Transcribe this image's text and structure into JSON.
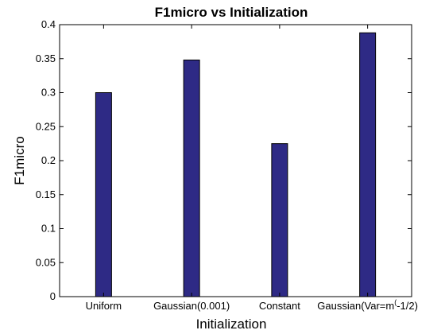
{
  "chart_data": {
    "type": "bar",
    "title": "F1micro vs Initialization",
    "xlabel": "Initialization",
    "ylabel": "F1micro",
    "categories": [
      "Uniform",
      "Gaussian(0.001)",
      "Constant",
      "Gaussian(Var=m^(-1/2)"
    ],
    "category_label_last_parts": [
      "Gaussian(Var=m",
      "(",
      "-1/2)"
    ],
    "values": [
      0.3,
      0.348,
      0.225,
      0.388
    ],
    "ylim": [
      0,
      0.4
    ],
    "yticks": [
      0,
      0.05,
      0.1,
      0.15,
      0.2,
      0.25,
      0.3,
      0.35,
      0.4
    ],
    "ytick_labels": [
      "0",
      "0.05",
      "0.1",
      "0.15",
      "0.2",
      "0.25",
      "0.3",
      "0.35",
      "0.4"
    ],
    "grid": false,
    "legend": "none",
    "bar_color": "#2e2a85",
    "bar_edge_color": "#000000"
  }
}
